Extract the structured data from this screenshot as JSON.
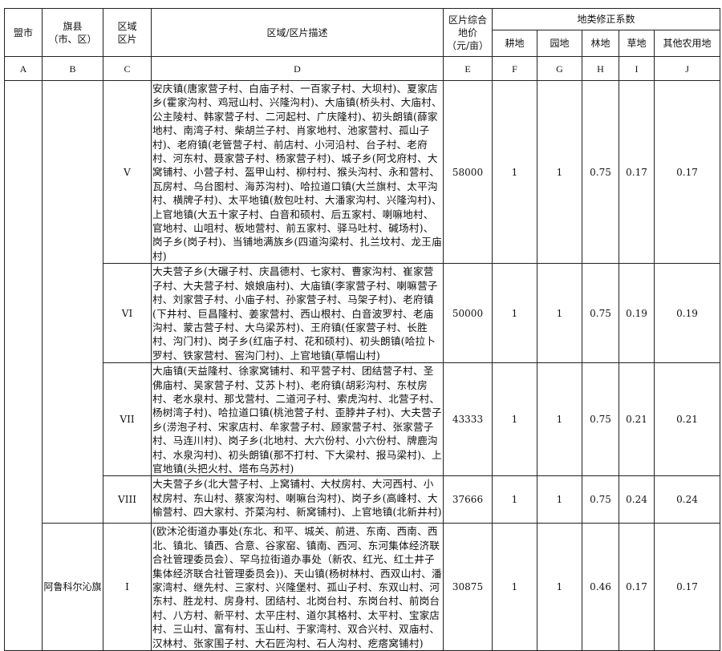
{
  "header": {
    "col_a": "盟市",
    "col_b": "旗县\n（市、区）",
    "col_b_line1": "旗县",
    "col_b_line2": "（市、区）",
    "col_c_line1": "区域",
    "col_c_line2": "区片",
    "col_d": "区域/区片描述",
    "col_e_line1": "区片综合",
    "col_e_line2": "地价",
    "col_e_line3": "（元/亩）",
    "group": "地类修正系数",
    "col_f": "耕地",
    "col_g": "园地",
    "col_h": "林地",
    "col_i": "草地",
    "col_j": "其他农用地"
  },
  "letters": [
    "A",
    "B",
    "C",
    "D",
    "E",
    "F",
    "G",
    "H",
    "I",
    "J"
  ],
  "rows": [
    {
      "county": "",
      "zone": "V",
      "desc": "安庆镇(唐家营子村、白庙子村、一百家子村、大坝村)、夏家店乡(霍家沟村、鸡冠山村、兴隆沟村)、大庙镇(桥头村、大庙村、公主陵村、韩家营子村、二河起村、广庆隆村)、初头朗镇(薛家地村、南湾子村、柴胡兰子村、肖家地村、池家营村、孤山子村)、老府镇(老管营子村、前店村、小河沿村、台子村、老府村、河东村、聂家营子村、杨家营子村)、城子乡(阿戈府村、大窝铺村、小营子村、盔甲山村、柳村村、猴头沟村、永和营村、瓦房村、乌台图村、海苏沟村)、哈拉道口镇(大兰旗村、太平沟村、横牌子村)、太平地镇(敖包吐村、大潘家沟村、兴隆沟村)、上官地镇(大五十家子村、白音和硕村、后五家村、喇嘛地村、官地村、山咀村、板地营村、前五家村、驿马吐村、碱场村)、岗子乡(岗子村)、当铺地满族乡(四道沟梁村、扎兰坟村、龙王庙村)",
      "price": "58000",
      "f": "1",
      "g": "1",
      "h": "0.75",
      "i": "0.17",
      "j": "0.17"
    },
    {
      "county": "",
      "zone": "VI",
      "desc": "大夫营子乡(大碾子村、庆昌德村、七家村、曹家沟村、崔家营子村、大夫营子村、娘娘庙村)、大庙镇(李家营子村、喇嘛营子村、刘家营子村、小庙子村、孙家营子村、马架子村)、老府镇(下井村、巨昌隆村、姜家营村、西山根村、白音波罗村、老庙沟村、蒙古营子村、大乌梁苏村)、王府镇(任家营子村、长胜村、沟门村)、岗子乡(红庙子村、花和硕村)、初头朗镇(哈拉卜罗村、铁家营村、窖沟门村)、上官地镇(草帽山村)",
      "price": "50000",
      "f": "1",
      "g": "1",
      "h": "0.75",
      "i": "0.19",
      "j": "0.19"
    },
    {
      "county": "",
      "zone": "VII",
      "desc": "大庙镇(天益隆村、徐家窝铺村、和平营子村、团结营子村、圣佛庙村、吴家营子村、艾苏卜村)、老府镇(胡彩沟村、东杖房村、老水泉村、那戈营村、二道河子村、索虎沟村、北营子村、杨树湾子村)、哈拉道口镇(桃池营子村、歪脖井子村)、大夫营子乡(涝泡子村、宋家店村、牟家营子村、顾家营子村、张家营子村、马连川村)、岗子乡(北地村、大六份村、小六份村、牌鹿沟村、水泉沟村)、初头朗镇(那不打村、下大梁村、报马梁村)、上官地镇(头把火村、塔布乌苏村)",
      "price": "43333",
      "f": "1",
      "g": "1",
      "h": "0.75",
      "i": "0.21",
      "j": "0.21"
    },
    {
      "county": "",
      "zone": "VIII",
      "desc": "大夫营子乡(北大营子村、上窝铺村、大杖房村、大河西村、小杖房村、东山村、蔡家沟村、喇嘛台沟村)、岗子乡(高峰村、大榆营村、四大家村、芥菜沟村、新窝铺村)、上官地镇(北新井村)",
      "price": "37666",
      "f": "1",
      "g": "1",
      "h": "0.75",
      "i": "0.24",
      "j": "0.24"
    },
    {
      "county": "阿鲁科尔沁旗",
      "zone": "I",
      "desc": "(欧沐沦街道办事处(东北、和平、城关、前进、东南、西南、西北、镇北、镇西、合意、谷家窑、镇南、西河、东河集体经济联合社管理委员会）、罕乌拉街道办事处（新农、红光、红土井子集体经济联合社管理委员会))、天山镇(杨树林村、西双山村、潘家湾村、继先村、三家村、兴隆堡村、孤山子村、东双山村、河东村、胜龙村、房身村、团结村、北岗台村、东岗台村、前岗台村、八方村、新平村、太平庄村、道尔其格村、太平村、宝家店村、三山村、富有村、玉山村、于家湾村、双合兴村、双庙村、汉林村、张家围子村、大石匠沟村、石人沟村、疙瘩窝铺村)",
      "price": "30875",
      "f": "1",
      "g": "1",
      "h": "0.46",
      "i": "0.17",
      "j": "0.17"
    }
  ]
}
